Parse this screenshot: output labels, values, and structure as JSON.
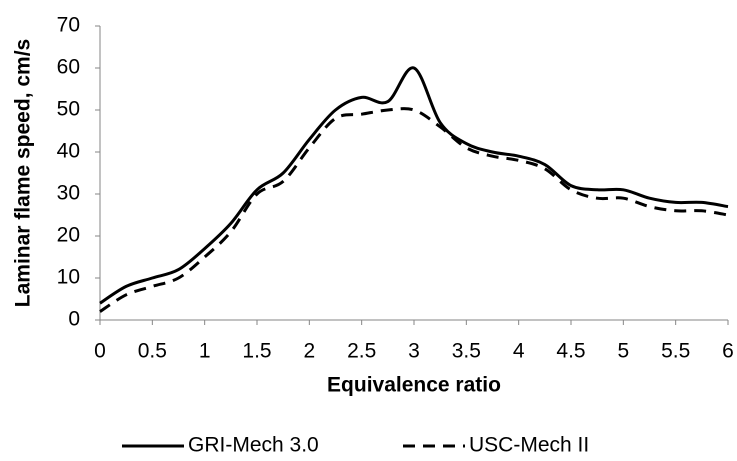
{
  "chart_data": {
    "type": "line",
    "x_label": "Equivalence ratio",
    "y_label": "Laminar flame speed, cm/s",
    "x": [
      0,
      0.25,
      0.5,
      0.75,
      1,
      1.25,
      1.5,
      1.75,
      2,
      2.25,
      2.5,
      2.75,
      3,
      3.25,
      3.5,
      3.75,
      4,
      4.25,
      4.5,
      4.75,
      5,
      5.25,
      5.5,
      5.75,
      6
    ],
    "series": [
      {
        "name": "GRI-Mech 3.0",
        "color": "#000000",
        "dash": "solid",
        "values": [
          4,
          8,
          10,
          12,
          17,
          23,
          31,
          35,
          43,
          50,
          53,
          52,
          60,
          47,
          42,
          40,
          39,
          37,
          32,
          31,
          31,
          29,
          28,
          28,
          27
        ]
      },
      {
        "name": "USC-Mech II",
        "color": "#000000",
        "dash": "dashed",
        "values": [
          2,
          6,
          8,
          10,
          15,
          21,
          30,
          33,
          41,
          48,
          49,
          50,
          50,
          46,
          41,
          39,
          38,
          36,
          31,
          29,
          29,
          27,
          26,
          26,
          25
        ]
      }
    ],
    "xlim": [
      0,
      6
    ],
    "xticks": [
      0,
      0.5,
      1,
      1.5,
      2,
      2.5,
      3,
      3.5,
      4,
      4.5,
      5,
      5.5,
      6
    ],
    "ylim": [
      0,
      70
    ],
    "yticks": [
      0,
      10,
      20,
      30,
      40,
      50,
      60,
      70
    ],
    "grid": false,
    "legend": "bottom"
  }
}
